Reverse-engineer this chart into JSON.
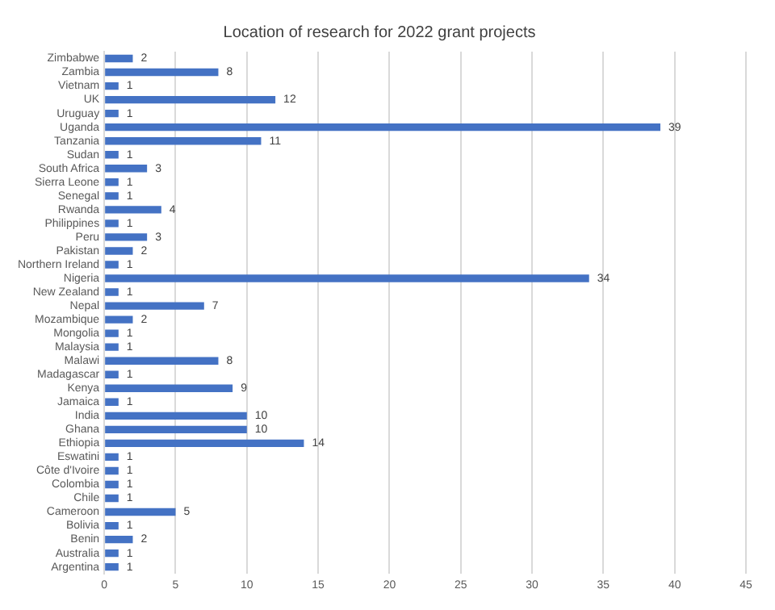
{
  "chart_data": {
    "type": "bar",
    "orientation": "horizontal",
    "title": "Location of research for 2022 grant projects",
    "categories": [
      "Zimbabwe",
      "Zambia",
      "Vietnam",
      "UK",
      "Uruguay",
      "Uganda",
      "Tanzania",
      "Sudan",
      "South Africa",
      "Sierra Leone",
      "Senegal",
      "Rwanda",
      "Philippines",
      "Peru",
      "Pakistan",
      "Northern Ireland",
      "Nigeria",
      "New Zealand",
      "Nepal",
      "Mozambique",
      "Mongolia",
      "Malaysia",
      "Malawi",
      "Madagascar",
      "Kenya",
      "Jamaica",
      "India",
      "Ghana",
      "Ethiopia",
      "Eswatini",
      "Côte d'Ivoire",
      "Colombia",
      "Chile",
      "Cameroon",
      "Bolivia",
      "Benin",
      "Australia",
      "Argentina"
    ],
    "values": [
      2,
      8,
      1,
      12,
      1,
      39,
      11,
      1,
      3,
      1,
      1,
      4,
      1,
      3,
      2,
      1,
      34,
      1,
      7,
      2,
      1,
      1,
      8,
      1,
      9,
      1,
      10,
      10,
      14,
      1,
      1,
      1,
      1,
      5,
      1,
      2,
      1,
      1
    ],
    "color": "#4472c4",
    "data_labels": true,
    "xlim": [
      0,
      45
    ],
    "xticks": [
      0,
      5,
      10,
      15,
      20,
      25,
      30,
      35,
      40,
      45
    ],
    "grid": "x",
    "legend": false
  }
}
